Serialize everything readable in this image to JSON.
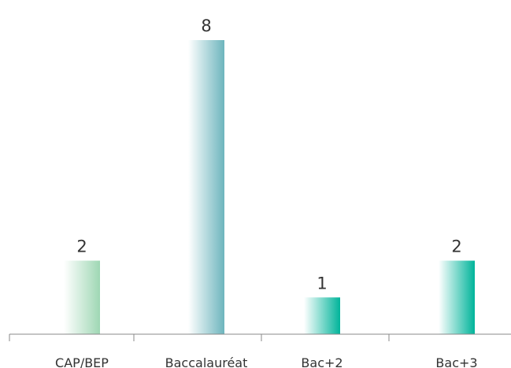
{
  "chart_data": {
    "type": "bar",
    "categories": [
      "CAP/BEP",
      "Baccalauréat",
      "Bac+2",
      "Bac+3"
    ],
    "values": [
      2,
      8,
      1,
      2
    ],
    "ylim": [
      0,
      8
    ],
    "grid": false,
    "legend": "none",
    "title": "",
    "xlabel": "",
    "ylabel": "",
    "bar_colors": [
      "#9fd7b4",
      "#6db5bd",
      "#00b49a",
      "#00b49a"
    ],
    "axis_color": "#888888",
    "text_color": "#333333"
  }
}
